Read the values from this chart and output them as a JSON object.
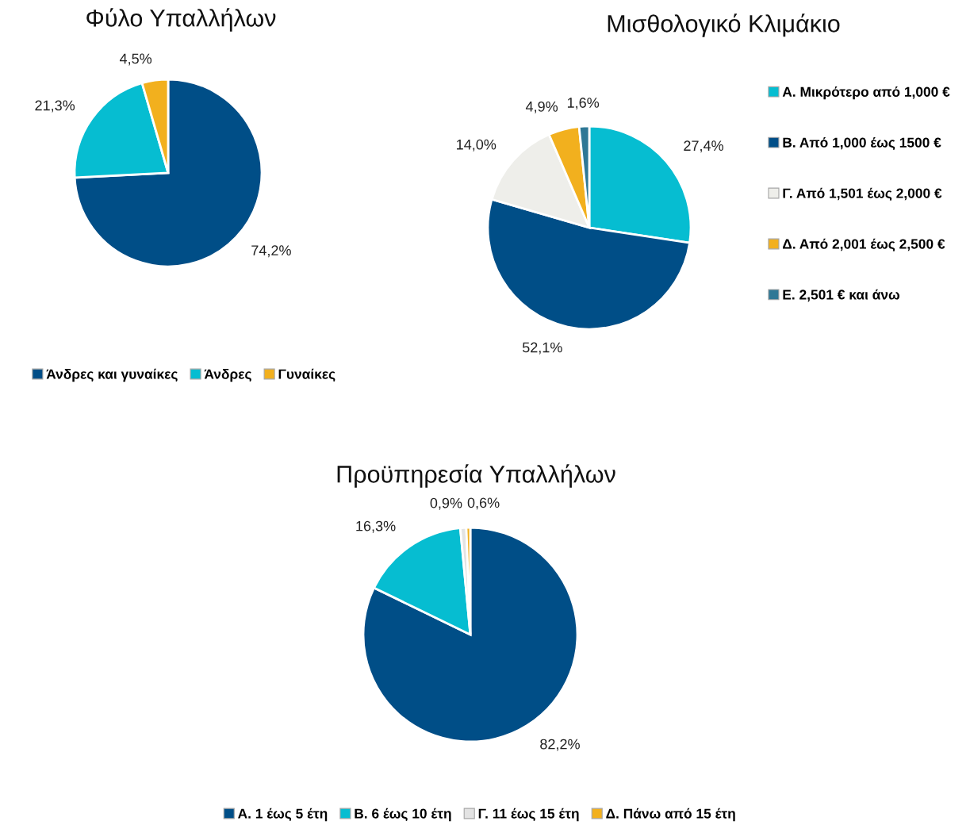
{
  "chart_data": [
    {
      "type": "pie",
      "title": "Φύλο Υπαλλήλων",
      "categories": [
        "Άνδρες και γυναίκες",
        "Άνδρες",
        "Γυναίκες"
      ],
      "values": [
        74.2,
        21.3,
        4.5
      ],
      "value_labels": [
        "74,2%",
        "21,3%",
        "4,5%"
      ],
      "colors": [
        "#004e87",
        "#06bdd1",
        "#f2b01e"
      ],
      "legend": "bottom"
    },
    {
      "type": "pie",
      "title": "Μισθολογικό Κλιμάκιο",
      "categories": [
        "Α. Μικρότερο από 1,000 €",
        "Β. Από 1,000 έως 1500 €",
        "Γ. Από 1,501 έως 2,000 €",
        "Δ. Από 2,001 έως 2,500 €",
        "Ε. 2,501 € και άνω"
      ],
      "values": [
        27.4,
        52.1,
        14.0,
        4.9,
        1.6
      ],
      "value_labels": [
        "27,4%",
        "52,1%",
        "14,0%",
        "4,9%",
        "1,6%"
      ],
      "colors": [
        "#06bdd1",
        "#004e87",
        "#eeeeea",
        "#f2b01e",
        "#2f7896"
      ],
      "legend": "right"
    },
    {
      "type": "pie",
      "title": "Προϋπηρεσία Υπαλλήλων",
      "categories": [
        "Α. 1 έως 5 έτη",
        "Β. 6 έως 10 έτη",
        "Γ. 11 έως 15 έτη",
        "Δ. Πάνω από 15 έτη"
      ],
      "values": [
        82.2,
        16.3,
        0.9,
        0.6
      ],
      "value_labels": [
        "82,2%",
        "16,3%",
        "0,9%",
        "0,6%"
      ],
      "colors": [
        "#004e87",
        "#06bdd1",
        "#e3e3e3",
        "#f2b01e"
      ],
      "legend": "bottom"
    }
  ]
}
